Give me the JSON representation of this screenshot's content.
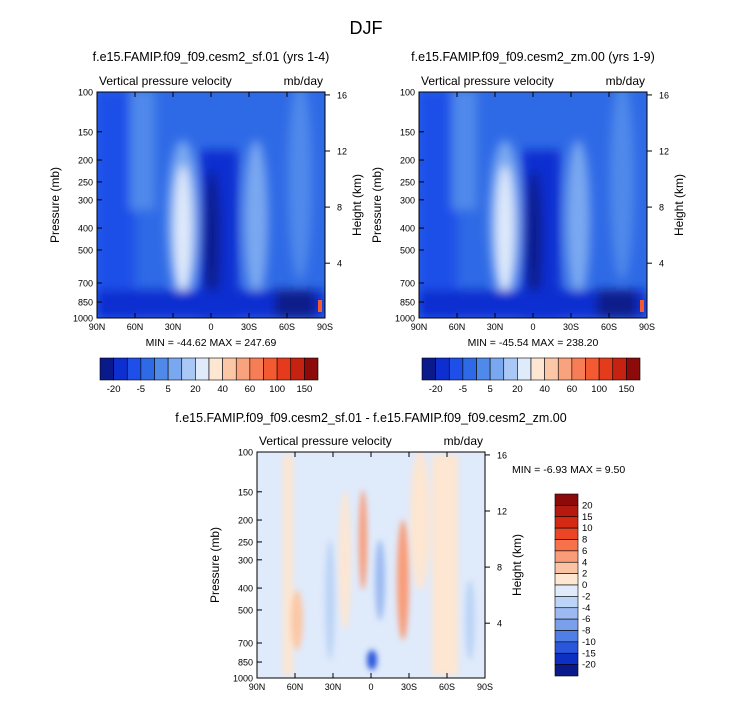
{
  "figure": {
    "title": "DJF"
  },
  "chart_data": [
    {
      "type": "heatmap",
      "id": "panel-1",
      "title": "f.e15.FAMIP.f09_f09.cesm2_sf.01 (yrs 1-4)",
      "subtitle_left": "Vertical pressure velocity",
      "subtitle_right": "mb/day",
      "xlabel": "",
      "ylabel": "Pressure (mb)",
      "y2label": "Height (km)",
      "x_ticks": [
        "90N",
        "60N",
        "30N",
        "0",
        "30S",
        "60S",
        "90S"
      ],
      "y_ticks": [
        100,
        150,
        200,
        250,
        300,
        400,
        500,
        700,
        850,
        1000
      ],
      "y_log_scale": true,
      "y2_ticks": [
        16,
        12,
        8,
        4
      ],
      "xlim": [
        90,
        -90
      ],
      "ylim": [
        1000,
        100
      ],
      "min_max_text": "MIN = -44.62   MAX = 247.69",
      "contour_levels": [
        "-20",
        "-15",
        "-10",
        "-5",
        "0",
        "5",
        "10",
        "20",
        "30",
        "40",
        "50",
        "60",
        "80",
        "100",
        "120",
        "150"
      ],
      "colorbar_labels": [
        "-20",
        "-5",
        "5",
        "20",
        "40",
        "60",
        "100",
        "150"
      ],
      "colorbar_colors": [
        "#0a1a8a",
        "#0e2fd0",
        "#1e4fe8",
        "#2f6ae6",
        "#4f89ea",
        "#7aa8f0",
        "#a9c8f5",
        "#dfeafb",
        "#fde6d2",
        "#fbc7a6",
        "#f9a27e",
        "#f77d56",
        "#f35a32",
        "#e33b1c",
        "#c52212",
        "#8d0a0a"
      ],
      "colorbar_orientation": "horizontal",
      "colorbar_position": "below",
      "fields": [
        {
          "lat": [
            90,
            65
          ],
          "bg": "#2f6ae6"
        },
        {
          "lat": [
            65,
            35
          ],
          "bg": "#2f6ae6"
        },
        {
          "lat": [
            35,
            15
          ],
          "bg": "#a9c8f5"
        },
        {
          "lat": [
            15,
            0
          ],
          "bg": "#0e2fd0"
        },
        {
          "lat": [
            0,
            -28
          ],
          "bg": "#2f6ae6"
        },
        {
          "lat": [
            -28,
            -50
          ],
          "bg": "#4f89ea"
        },
        {
          "lat": [
            -50,
            -90
          ],
          "bg": "#2f6ae6"
        }
      ]
    },
    {
      "type": "heatmap",
      "id": "panel-2",
      "title": "f.e15.FAMIP.f09_f09.cesm2_zm.00 (yrs 1-9)",
      "subtitle_left": "Vertical pressure velocity",
      "subtitle_right": "mb/day",
      "xlabel": "",
      "ylabel": "Pressure (mb)",
      "y2label": "Height (km)",
      "x_ticks": [
        "90N",
        "60N",
        "30N",
        "0",
        "30S",
        "60S",
        "90S"
      ],
      "y_ticks": [
        100,
        150,
        200,
        250,
        300,
        400,
        500,
        700,
        850,
        1000
      ],
      "y_log_scale": true,
      "y2_ticks": [
        16,
        12,
        8,
        4
      ],
      "xlim": [
        90,
        -90
      ],
      "ylim": [
        1000,
        100
      ],
      "min_max_text": "MIN = -45.54   MAX = 238.20",
      "contour_levels": [
        "-20",
        "-15",
        "-10",
        "-5",
        "0",
        "5",
        "10",
        "20",
        "30",
        "40",
        "50",
        "60",
        "80",
        "100",
        "120",
        "150"
      ],
      "colorbar_labels": [
        "-20",
        "-5",
        "5",
        "20",
        "40",
        "60",
        "100",
        "150"
      ],
      "colorbar_colors": [
        "#0a1a8a",
        "#0e2fd0",
        "#1e4fe8",
        "#2f6ae6",
        "#4f89ea",
        "#7aa8f0",
        "#a9c8f5",
        "#dfeafb",
        "#fde6d2",
        "#fbc7a6",
        "#f9a27e",
        "#f77d56",
        "#f35a32",
        "#e33b1c",
        "#c52212",
        "#8d0a0a"
      ],
      "colorbar_orientation": "horizontal",
      "colorbar_position": "below"
    },
    {
      "type": "heatmap",
      "id": "panel-diff",
      "title": "f.e15.FAMIP.f09_f09.cesm2_sf.01 - f.e15.FAMIP.f09_f09.cesm2_zm.00",
      "subtitle_left": "Vertical pressure velocity",
      "subtitle_right": "mb/day",
      "xlabel": "",
      "ylabel": "Pressure (mb)",
      "y2label": "Height (km)",
      "x_ticks": [
        "90N",
        "60N",
        "30N",
        "0",
        "30S",
        "60S",
        "90S"
      ],
      "y_ticks": [
        100,
        150,
        200,
        250,
        300,
        400,
        500,
        700,
        850,
        1000
      ],
      "y_log_scale": true,
      "y2_ticks": [
        16,
        12,
        8,
        4
      ],
      "xlim": [
        90,
        -90
      ],
      "ylim": [
        1000,
        100
      ],
      "min_max_text": "MIN = -6.93   MAX =  9.50",
      "contour_levels": [
        "-20",
        "-15",
        "-10",
        "-8",
        "-6",
        "-4",
        "-2",
        "0",
        "2",
        "4",
        "6",
        "8",
        "10",
        "15",
        "20"
      ],
      "colorbar_labels": [
        "20",
        "15",
        "10",
        "8",
        "6",
        "4",
        "2",
        "0",
        "-2",
        "-4",
        "-6",
        "-8",
        "-10",
        "-15",
        "-20"
      ],
      "colorbar_colors": [
        "#8d0a0a",
        "#b51a10",
        "#d42a14",
        "#ea4524",
        "#f7714a",
        "#f99c78",
        "#fbc2a3",
        "#fde6d2",
        "#dfeafb",
        "#bcd4f6",
        "#9cbaf1",
        "#7aa0ec",
        "#4f7ee6",
        "#2a56dc",
        "#0e2fc4",
        "#0a1a8a"
      ],
      "colorbar_orientation": "vertical",
      "colorbar_position": "right"
    }
  ]
}
